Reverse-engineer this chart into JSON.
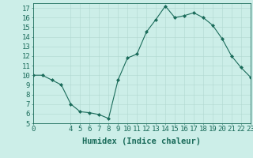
{
  "x": [
    0,
    1,
    2,
    3,
    4,
    5,
    6,
    7,
    8,
    9,
    10,
    11,
    12,
    13,
    14,
    15,
    16,
    17,
    18,
    19,
    20,
    21,
    22,
    23
  ],
  "y": [
    10,
    10,
    9.5,
    9,
    7,
    6.2,
    6.1,
    5.9,
    5.5,
    9.5,
    11.8,
    12.2,
    14.5,
    15.8,
    17.2,
    16.0,
    16.2,
    16.5,
    16.0,
    15.2,
    13.8,
    12.0,
    10.8,
    9.8
  ],
  "line_color": "#1a6b5a",
  "marker": "D",
  "marker_size": 2.0,
  "bg_color": "#cceee8",
  "grid_color": "#b0d8d0",
  "axis_color": "#1a6b5a",
  "xlabel": "Humidex (Indice chaleur)",
  "xlabel_fontsize": 7.5,
  "ylim": [
    5,
    17.5
  ],
  "xlim": [
    0,
    23
  ],
  "yticks": [
    5,
    6,
    7,
    8,
    9,
    10,
    11,
    12,
    13,
    14,
    15,
    16,
    17
  ],
  "xticks": [
    0,
    4,
    5,
    6,
    7,
    8,
    9,
    10,
    11,
    12,
    13,
    14,
    15,
    16,
    17,
    18,
    19,
    20,
    21,
    22,
    23
  ],
  "tick_fontsize": 6.5
}
